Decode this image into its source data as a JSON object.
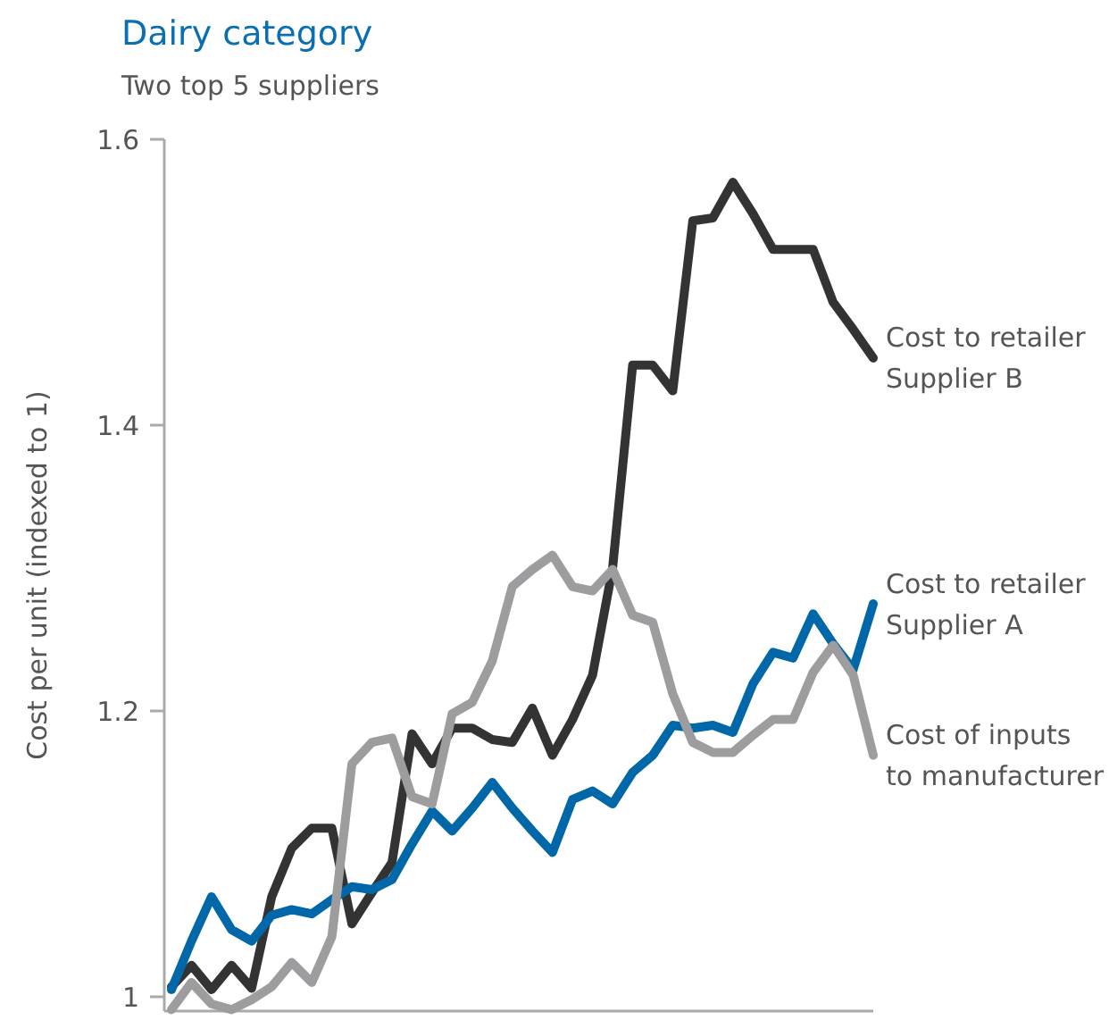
{
  "chart_data": {
    "type": "line",
    "title": "Dairy category",
    "subtitle": "Two top 5 suppliers",
    "ylabel": "Cost per unit (indexed to 1)",
    "categories": [
      null,
      null,
      null,
      null,
      null,
      null,
      null,
      null,
      null,
      null,
      null,
      null,
      null,
      null,
      null,
      null,
      null,
      null,
      null,
      null,
      null,
      null,
      null,
      null,
      null,
      null,
      null,
      null,
      null,
      null,
      null,
      null,
      null,
      null,
      null,
      null
    ],
    "ylim": [
      0.99,
      1.6
    ],
    "yticks": [
      1,
      1.2,
      1.4,
      1.6
    ],
    "tick_labels": "y",
    "marker": "none",
    "line_style": "solid",
    "series": [
      {
        "name": "Cost to retailer Supplier B",
        "color": "#333333",
        "values": [
          1.007,
          1.022,
          1.005,
          1.022,
          1.006,
          1.07,
          1.104,
          1.118,
          1.118,
          1.051,
          1.073,
          1.094,
          1.184,
          1.163,
          1.188,
          1.188,
          1.18,
          1.178,
          1.202,
          1.169,
          1.194,
          1.225,
          1.3,
          1.442,
          1.442,
          1.424,
          1.543,
          1.545,
          1.57,
          1.548,
          1.523,
          1.523,
          1.523,
          1.486,
          1.467,
          1.447
        ]
      },
      {
        "name": "Cost to retailer Supplier A",
        "color": "#0068a8",
        "values": [
          1.005,
          1.039,
          1.07,
          1.047,
          1.039,
          1.057,
          1.061,
          1.058,
          1.068,
          1.077,
          1.075,
          1.082,
          1.107,
          1.13,
          1.116,
          1.132,
          1.15,
          1.132,
          1.116,
          1.101,
          1.138,
          1.144,
          1.135,
          1.157,
          1.169,
          1.19,
          1.188,
          1.19,
          1.185,
          1.219,
          1.241,
          1.237,
          1.268,
          1.247,
          1.229,
          1.275
        ]
      },
      {
        "name": "Cost of inputs to manufacturer",
        "color": "#9d9d9f",
        "values": [
          0.991,
          1.01,
          0.995,
          0.991,
          0.998,
          1.007,
          1.024,
          1.01,
          1.042,
          1.163,
          1.178,
          1.181,
          1.14,
          1.135,
          1.198,
          1.206,
          1.235,
          1.287,
          1.299,
          1.309,
          1.287,
          1.284,
          1.299,
          1.267,
          1.262,
          1.212,
          1.178,
          1.171,
          1.171,
          1.183,
          1.194,
          1.194,
          1.227,
          1.246,
          1.225,
          1.169
        ]
      }
    ]
  }
}
